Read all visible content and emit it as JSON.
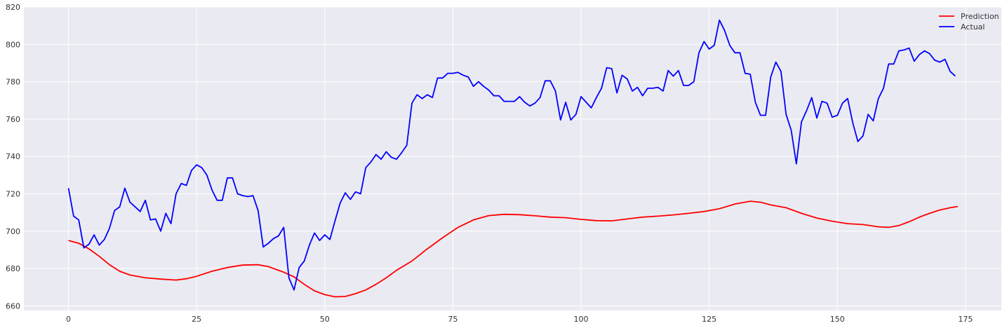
{
  "chart_data": {
    "type": "line",
    "title": "",
    "xlabel": "",
    "ylabel": "",
    "xlim": [
      -8.7,
      182
    ],
    "ylim": [
      657.5,
      820
    ],
    "xticks": [
      0,
      25,
      50,
      75,
      100,
      125,
      150,
      175
    ],
    "yticks": [
      660,
      680,
      700,
      720,
      740,
      760,
      780,
      800,
      820
    ],
    "grid": true,
    "background": "#eaeaf2",
    "legend": {
      "placement": "top-right",
      "entries": [
        "Prediction",
        "Actual"
      ]
    },
    "series": [
      {
        "name": "Prediction",
        "color": "#ff0000",
        "points": [
          [
            0,
            695
          ],
          [
            2,
            693.5
          ],
          [
            4,
            690.5
          ],
          [
            6,
            686.5
          ],
          [
            8,
            682
          ],
          [
            10,
            678.5
          ],
          [
            12,
            676.5
          ],
          [
            15,
            675
          ],
          [
            18,
            674.3
          ],
          [
            21,
            673.8
          ],
          [
            23,
            674.5
          ],
          [
            25,
            675.8
          ],
          [
            28,
            678.5
          ],
          [
            31,
            680.5
          ],
          [
            34,
            681.8
          ],
          [
            37,
            682
          ],
          [
            39,
            681
          ],
          [
            42,
            678
          ],
          [
            44,
            675.5
          ],
          [
            46,
            671.5
          ],
          [
            48,
            668
          ],
          [
            50,
            666
          ],
          [
            52,
            664.8
          ],
          [
            54,
            665
          ],
          [
            56,
            666.5
          ],
          [
            58,
            668.5
          ],
          [
            60,
            671.5
          ],
          [
            62,
            675
          ],
          [
            64,
            679
          ],
          [
            67,
            684
          ],
          [
            70,
            690.5
          ],
          [
            73,
            696.5
          ],
          [
            76,
            702
          ],
          [
            79,
            706
          ],
          [
            82,
            708.3
          ],
          [
            85,
            709
          ],
          [
            88,
            708.8
          ],
          [
            91,
            708.2
          ],
          [
            94,
            707.5
          ],
          [
            97,
            707.2
          ],
          [
            100,
            706.3
          ],
          [
            103,
            705.6
          ],
          [
            106,
            705.5
          ],
          [
            109,
            706.5
          ],
          [
            112,
            707.5
          ],
          [
            115,
            708
          ],
          [
            118,
            708.7
          ],
          [
            121,
            709.5
          ],
          [
            124,
            710.5
          ],
          [
            127,
            712
          ],
          [
            130,
            714.5
          ],
          [
            133,
            716
          ],
          [
            135,
            715.5
          ],
          [
            137,
            714
          ],
          [
            140,
            712.5
          ],
          [
            143,
            709.5
          ],
          [
            146,
            707
          ],
          [
            149,
            705.3
          ],
          [
            152,
            704
          ],
          [
            155,
            703.5
          ],
          [
            158,
            702.3
          ],
          [
            160,
            702
          ],
          [
            162,
            703
          ],
          [
            164,
            705
          ],
          [
            166,
            707.5
          ],
          [
            168,
            709.5
          ],
          [
            170,
            711.3
          ],
          [
            172,
            712.5
          ],
          [
            173.5,
            713.2
          ]
        ]
      },
      {
        "name": "Actual",
        "color": "#0000ff",
        "points": [
          [
            0,
            723
          ],
          [
            1,
            708
          ],
          [
            2,
            706
          ],
          [
            3,
            691
          ],
          [
            4,
            693
          ],
          [
            5,
            698
          ],
          [
            6,
            692.5
          ],
          [
            7,
            695.5
          ],
          [
            8,
            701.5
          ],
          [
            9,
            711
          ],
          [
            10,
            713
          ],
          [
            11,
            723
          ],
          [
            12,
            715.5
          ],
          [
            13,
            713
          ],
          [
            14,
            710.5
          ],
          [
            15,
            716.5
          ],
          [
            16,
            706
          ],
          [
            17,
            706.5
          ],
          [
            18,
            700
          ],
          [
            19,
            709.5
          ],
          [
            20,
            704
          ],
          [
            21,
            720
          ],
          [
            22,
            725.5
          ],
          [
            23,
            724.5
          ],
          [
            24,
            732.5
          ],
          [
            25,
            735.5
          ],
          [
            26,
            734
          ],
          [
            27,
            730
          ],
          [
            28,
            722
          ],
          [
            29,
            716.5
          ],
          [
            30,
            716.5
          ],
          [
            31,
            728.5
          ],
          [
            32,
            728.5
          ],
          [
            33,
            720
          ],
          [
            34,
            719
          ],
          [
            35,
            718.5
          ],
          [
            36,
            719
          ],
          [
            37,
            711
          ],
          [
            38,
            691.5
          ],
          [
            39,
            693.5
          ],
          [
            40,
            696
          ],
          [
            41,
            697.5
          ],
          [
            42,
            702
          ],
          [
            43,
            675
          ],
          [
            44,
            668.5
          ],
          [
            45,
            680.5
          ],
          [
            46,
            684
          ],
          [
            47,
            692.5
          ],
          [
            48,
            699
          ],
          [
            49,
            695
          ],
          [
            50,
            698
          ],
          [
            51,
            695.5
          ],
          [
            52,
            705.5
          ],
          [
            53,
            715
          ],
          [
            54,
            720.5
          ],
          [
            55,
            717
          ],
          [
            56,
            721
          ],
          [
            57,
            720
          ],
          [
            58,
            734
          ],
          [
            59,
            737
          ],
          [
            60,
            741
          ],
          [
            61,
            738.5
          ],
          [
            62,
            742.5
          ],
          [
            63,
            739.5
          ],
          [
            64,
            738.5
          ],
          [
            65,
            742
          ],
          [
            66,
            746
          ],
          [
            67,
            768.5
          ],
          [
            68,
            773
          ],
          [
            69,
            771
          ],
          [
            70,
            773
          ],
          [
            71,
            771.5
          ],
          [
            72,
            782
          ],
          [
            73,
            782
          ],
          [
            74,
            784.5
          ],
          [
            75,
            784.5
          ],
          [
            76,
            785
          ],
          [
            77,
            783.5
          ],
          [
            78,
            782.5
          ],
          [
            79,
            777.5
          ],
          [
            80,
            780
          ],
          [
            81,
            777.5
          ],
          [
            82,
            775.5
          ],
          [
            83,
            772.5
          ],
          [
            84,
            772.5
          ],
          [
            85,
            769.5
          ],
          [
            86,
            769.5
          ],
          [
            87,
            769.5
          ],
          [
            88,
            772
          ],
          [
            89,
            769
          ],
          [
            90,
            767
          ],
          [
            91,
            768.5
          ],
          [
            92,
            771.5
          ],
          [
            93,
            780.5
          ],
          [
            94,
            780.5
          ],
          [
            95,
            775
          ],
          [
            96,
            759.5
          ],
          [
            97,
            769
          ],
          [
            98,
            759.5
          ],
          [
            99,
            762.5
          ],
          [
            100,
            772
          ],
          [
            101,
            769
          ],
          [
            102,
            766
          ],
          [
            103,
            771.5
          ],
          [
            104,
            776.5
          ],
          [
            105,
            787.5
          ],
          [
            106,
            787
          ],
          [
            107,
            774
          ],
          [
            108,
            783.5
          ],
          [
            109,
            781.5
          ],
          [
            110,
            775
          ],
          [
            111,
            777
          ],
          [
            112,
            772.5
          ],
          [
            113,
            776.5
          ],
          [
            114,
            776.5
          ],
          [
            115,
            777
          ],
          [
            116,
            775
          ],
          [
            117,
            786
          ],
          [
            118,
            783
          ],
          [
            119,
            786
          ],
          [
            120,
            778
          ],
          [
            121,
            778
          ],
          [
            122,
            780
          ],
          [
            123,
            795.5
          ],
          [
            124,
            801.5
          ],
          [
            125,
            797.5
          ],
          [
            126,
            799.5
          ],
          [
            127,
            813
          ],
          [
            128,
            807.5
          ],
          [
            129,
            799.5
          ],
          [
            130,
            795.5
          ],
          [
            131,
            795.5
          ],
          [
            132,
            784.5
          ],
          [
            133,
            784
          ],
          [
            134,
            769
          ],
          [
            135,
            762
          ],
          [
            136,
            762
          ],
          [
            137,
            782.5
          ],
          [
            138,
            790.5
          ],
          [
            139,
            785.5
          ],
          [
            140,
            762.5
          ],
          [
            141,
            754
          ],
          [
            142,
            736
          ],
          [
            143,
            758.5
          ],
          [
            144,
            764.5
          ],
          [
            145,
            771.5
          ],
          [
            146,
            760.5
          ],
          [
            147,
            769.5
          ],
          [
            148,
            768.5
          ],
          [
            149,
            761
          ],
          [
            150,
            762
          ],
          [
            151,
            768.5
          ],
          [
            152,
            771
          ],
          [
            153,
            758
          ],
          [
            154,
            748
          ],
          [
            155,
            751
          ],
          [
            156,
            762.5
          ],
          [
            157,
            759
          ],
          [
            158,
            771
          ],
          [
            159,
            776.5
          ],
          [
            160,
            789.5
          ],
          [
            161,
            789.5
          ],
          [
            162,
            796.5
          ],
          [
            163,
            797
          ],
          [
            164,
            798
          ],
          [
            165,
            791
          ],
          [
            166,
            794.5
          ],
          [
            167,
            796.5
          ],
          [
            168,
            795
          ],
          [
            169,
            791.5
          ],
          [
            170,
            790.5
          ],
          [
            171,
            792
          ],
          [
            172,
            785.5
          ],
          [
            173,
            783
          ]
        ]
      }
    ]
  }
}
